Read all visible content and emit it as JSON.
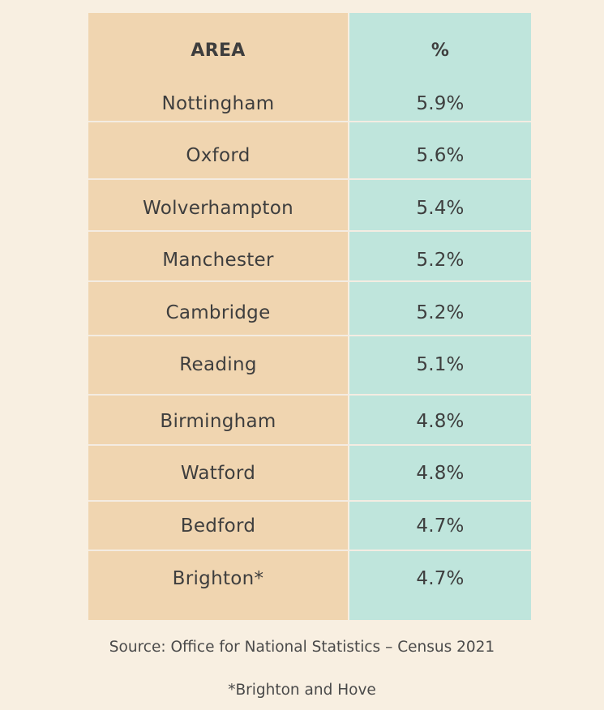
{
  "chart_data": {
    "type": "table",
    "columns": [
      "AREA",
      "%"
    ],
    "rows": [
      {
        "area": "Nottingham",
        "percent": "5.9%"
      },
      {
        "area": "Oxford",
        "percent": "5.6%"
      },
      {
        "area": "Wolverhampton",
        "percent": "5.4%"
      },
      {
        "area": "Manchester",
        "percent": "5.2%"
      },
      {
        "area": "Cambridge",
        "percent": "5.2%"
      },
      {
        "area": "Reading",
        "percent": "5.1%"
      },
      {
        "area": "Birmingham",
        "percent": "4.8%"
      },
      {
        "area": "Watford",
        "percent": "4.8%"
      },
      {
        "area": "Bedford",
        "percent": "4.7%"
      },
      {
        "area": "Brighton*",
        "percent": "4.7%"
      }
    ],
    "colors": {
      "area_column": "#f0d5b0",
      "percent_column": "#bfe5dc",
      "background": "#f8efe1",
      "text": "#3e3e3e"
    }
  },
  "footer": {
    "source": "Source: Office for National Statistics – Census 2021",
    "note": "*Brighton and Hove"
  }
}
